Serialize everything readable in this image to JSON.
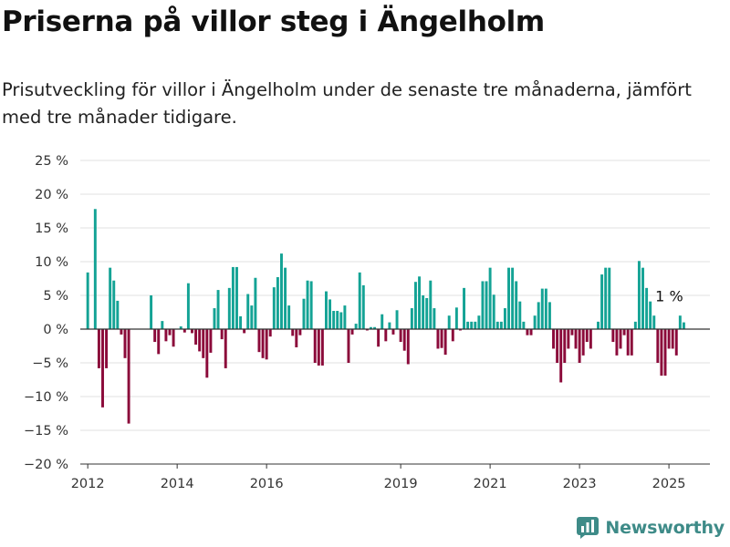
{
  "page": {
    "title": "Priserna på villor steg i Ängelholm",
    "subtitle": "Prisutveckling för villor i Ängelholm under de senaste tre månaderna, jämfört med tre månader tidigare."
  },
  "brand": {
    "name": "Newsworthy"
  },
  "colors": {
    "positive": "#14a395",
    "negative": "#8b0a3a",
    "brand": "#3e8b88"
  },
  "chart_data": {
    "type": "bar",
    "title": "Priserna på villor steg i Ängelholm",
    "subtitle": "Prisutveckling för villor i Ängelholm under de senaste tre månaderna, jämfört med tre månader tidigare.",
    "unit": "%",
    "ylim": [
      -20,
      25
    ],
    "yticks": [
      25,
      20,
      15,
      10,
      5,
      0,
      -5,
      -10,
      -15,
      -20
    ],
    "ytick_labels": [
      "25 %",
      "20 %",
      "15 %",
      "10 %",
      "5 %",
      "0 %",
      "−5 %",
      "−10 %",
      "−15 %",
      "−20 %"
    ],
    "xticks": [
      2012,
      2014,
      2016,
      2019,
      2021,
      2023,
      2025
    ],
    "xlim": [
      "2011-11",
      "2025-12"
    ],
    "grid": true,
    "last_label": "1 %",
    "series": [
      {
        "values": [
          {
            "x": "2012-01",
            "y": 8.4
          },
          {
            "x": "2012-02",
            "y": 0
          },
          {
            "x": "2012-03",
            "y": 17.8
          },
          {
            "x": "2012-04",
            "y": -5.8
          },
          {
            "x": "2012-05",
            "y": -11.6
          },
          {
            "x": "2012-06",
            "y": -5.8
          },
          {
            "x": "2012-07",
            "y": 9.1
          },
          {
            "x": "2012-08",
            "y": 7.2
          },
          {
            "x": "2012-09",
            "y": 4.2
          },
          {
            "x": "2012-10",
            "y": -0.8
          },
          {
            "x": "2012-11",
            "y": -4.3
          },
          {
            "x": "2012-12",
            "y": -14.0
          },
          {
            "x": "2013-06",
            "y": 5.0
          },
          {
            "x": "2013-07",
            "y": -1.9
          },
          {
            "x": "2013-08",
            "y": -3.7
          },
          {
            "x": "2013-09",
            "y": 1.2
          },
          {
            "x": "2013-10",
            "y": -1.8
          },
          {
            "x": "2013-11",
            "y": -0.9
          },
          {
            "x": "2013-12",
            "y": -2.6
          },
          {
            "x": "2014-02",
            "y": 0.4
          },
          {
            "x": "2014-03",
            "y": -0.5
          },
          {
            "x": "2014-04",
            "y": 6.8
          },
          {
            "x": "2014-05",
            "y": -0.6
          },
          {
            "x": "2014-06",
            "y": -2.3
          },
          {
            "x": "2014-07",
            "y": -3.3
          },
          {
            "x": "2014-08",
            "y": -4.3
          },
          {
            "x": "2014-09",
            "y": -7.2
          },
          {
            "x": "2014-10",
            "y": -3.5
          },
          {
            "x": "2014-11",
            "y": 3.1
          },
          {
            "x": "2014-12",
            "y": 5.8
          },
          {
            "x": "2015-01",
            "y": -1.5
          },
          {
            "x": "2015-02",
            "y": -5.8
          },
          {
            "x": "2015-03",
            "y": 6.1
          },
          {
            "x": "2015-04",
            "y": 9.2
          },
          {
            "x": "2015-05",
            "y": 9.2
          },
          {
            "x": "2015-06",
            "y": 1.9
          },
          {
            "x": "2015-07",
            "y": -0.6
          },
          {
            "x": "2015-08",
            "y": 5.2
          },
          {
            "x": "2015-09",
            "y": 3.5
          },
          {
            "x": "2015-10",
            "y": 7.6
          },
          {
            "x": "2015-11",
            "y": -3.4
          },
          {
            "x": "2015-12",
            "y": -4.3
          },
          {
            "x": "2016-01",
            "y": -4.5
          },
          {
            "x": "2016-02",
            "y": -1.1
          },
          {
            "x": "2016-03",
            "y": 6.2
          },
          {
            "x": "2016-04",
            "y": 7.7
          },
          {
            "x": "2016-05",
            "y": 11.2
          },
          {
            "x": "2016-06",
            "y": 9.1
          },
          {
            "x": "2016-07",
            "y": 3.5
          },
          {
            "x": "2016-08",
            "y": -1.0
          },
          {
            "x": "2016-09",
            "y": -2.7
          },
          {
            "x": "2016-10",
            "y": -0.9
          },
          {
            "x": "2016-11",
            "y": 4.5
          },
          {
            "x": "2016-12",
            "y": 7.2
          },
          {
            "x": "2017-01",
            "y": 7.1
          },
          {
            "x": "2017-02",
            "y": -5.0
          },
          {
            "x": "2017-03",
            "y": -5.4
          },
          {
            "x": "2017-04",
            "y": -5.4
          },
          {
            "x": "2017-05",
            "y": 5.6
          },
          {
            "x": "2017-06",
            "y": 4.4
          },
          {
            "x": "2017-07",
            "y": 2.7
          },
          {
            "x": "2017-08",
            "y": 2.7
          },
          {
            "x": "2017-09",
            "y": 2.5
          },
          {
            "x": "2017-10",
            "y": 3.5
          },
          {
            "x": "2017-11",
            "y": -5.0
          },
          {
            "x": "2017-12",
            "y": -0.8
          },
          {
            "x": "2018-01",
            "y": 0.8
          },
          {
            "x": "2018-02",
            "y": 8.4
          },
          {
            "x": "2018-03",
            "y": 6.5
          },
          {
            "x": "2018-04",
            "y": -0.2
          },
          {
            "x": "2018-05",
            "y": 0.3
          },
          {
            "x": "2018-06",
            "y": 0.3
          },
          {
            "x": "2018-07",
            "y": -2.6
          },
          {
            "x": "2018-08",
            "y": 2.2
          },
          {
            "x": "2018-09",
            "y": -1.8
          },
          {
            "x": "2018-10",
            "y": 1.0
          },
          {
            "x": "2018-11",
            "y": -0.8
          },
          {
            "x": "2018-12",
            "y": 2.8
          },
          {
            "x": "2019-01",
            "y": -1.9
          },
          {
            "x": "2019-02",
            "y": -3.2
          },
          {
            "x": "2019-03",
            "y": -5.2
          },
          {
            "x": "2019-04",
            "y": 3.1
          },
          {
            "x": "2019-05",
            "y": 7.0
          },
          {
            "x": "2019-06",
            "y": 7.8
          },
          {
            "x": "2019-07",
            "y": 5.0
          },
          {
            "x": "2019-08",
            "y": 4.6
          },
          {
            "x": "2019-09",
            "y": 7.2
          },
          {
            "x": "2019-10",
            "y": 3.1
          },
          {
            "x": "2019-11",
            "y": -2.9
          },
          {
            "x": "2019-12",
            "y": -2.8
          },
          {
            "x": "2020-01",
            "y": -3.8
          },
          {
            "x": "2020-02",
            "y": 2.0
          },
          {
            "x": "2020-03",
            "y": -1.8
          },
          {
            "x": "2020-04",
            "y": 3.2
          },
          {
            "x": "2020-05",
            "y": -0.2
          },
          {
            "x": "2020-06",
            "y": 6.1
          },
          {
            "x": "2020-07",
            "y": 1.1
          },
          {
            "x": "2020-08",
            "y": 1.1
          },
          {
            "x": "2020-09",
            "y": 1.1
          },
          {
            "x": "2020-10",
            "y": 2.0
          },
          {
            "x": "2020-11",
            "y": 7.1
          },
          {
            "x": "2020-12",
            "y": 7.1
          },
          {
            "x": "2021-01",
            "y": 9.1
          },
          {
            "x": "2021-02",
            "y": 5.1
          },
          {
            "x": "2021-03",
            "y": 1.1
          },
          {
            "x": "2021-04",
            "y": 1.1
          },
          {
            "x": "2021-05",
            "y": 3.1
          },
          {
            "x": "2021-06",
            "y": 9.1
          },
          {
            "x": "2021-07",
            "y": 9.1
          },
          {
            "x": "2021-08",
            "y": 7.1
          },
          {
            "x": "2021-09",
            "y": 4.1
          },
          {
            "x": "2021-10",
            "y": 1.1
          },
          {
            "x": "2021-11",
            "y": -0.9
          },
          {
            "x": "2021-12",
            "y": -0.9
          },
          {
            "x": "2022-01",
            "y": 2.0
          },
          {
            "x": "2022-02",
            "y": 4.0
          },
          {
            "x": "2022-03",
            "y": 6.0
          },
          {
            "x": "2022-04",
            "y": 6.0
          },
          {
            "x": "2022-05",
            "y": 4.0
          },
          {
            "x": "2022-06",
            "y": -2.9
          },
          {
            "x": "2022-07",
            "y": -5.0
          },
          {
            "x": "2022-08",
            "y": -7.9
          },
          {
            "x": "2022-09",
            "y": -5.0
          },
          {
            "x": "2022-10",
            "y": -2.9
          },
          {
            "x": "2022-11",
            "y": -0.9
          },
          {
            "x": "2022-12",
            "y": -2.9
          },
          {
            "x": "2023-01",
            "y": -5.0
          },
          {
            "x": "2023-02",
            "y": -3.9
          },
          {
            "x": "2023-03",
            "y": -1.9
          },
          {
            "x": "2023-04",
            "y": -2.9
          },
          {
            "x": "2023-05",
            "y": 0
          },
          {
            "x": "2023-06",
            "y": 1.1
          },
          {
            "x": "2023-07",
            "y": 8.1
          },
          {
            "x": "2023-08",
            "y": 9.1
          },
          {
            "x": "2023-09",
            "y": 9.1
          },
          {
            "x": "2023-10",
            "y": -1.9
          },
          {
            "x": "2023-11",
            "y": -3.9
          },
          {
            "x": "2023-12",
            "y": -2.9
          },
          {
            "x": "2024-01",
            "y": -0.9
          },
          {
            "x": "2024-02",
            "y": -3.9
          },
          {
            "x": "2024-03",
            "y": -3.9
          },
          {
            "x": "2024-04",
            "y": 1.1
          },
          {
            "x": "2024-05",
            "y": 10.1
          },
          {
            "x": "2024-06",
            "y": 9.1
          },
          {
            "x": "2024-07",
            "y": 6.1
          },
          {
            "x": "2024-08",
            "y": 4.1
          },
          {
            "x": "2024-09",
            "y": 2.0
          },
          {
            "x": "2024-10",
            "y": -5.0
          },
          {
            "x": "2024-11",
            "y": -6.9
          },
          {
            "x": "2024-12",
            "y": -6.9
          },
          {
            "x": "2025-01",
            "y": -2.9
          },
          {
            "x": "2025-02",
            "y": -2.9
          },
          {
            "x": "2025-03",
            "y": -3.9
          },
          {
            "x": "2025-04",
            "y": 2.0
          },
          {
            "x": "2025-05",
            "y": 1.0
          }
        ]
      }
    ]
  }
}
